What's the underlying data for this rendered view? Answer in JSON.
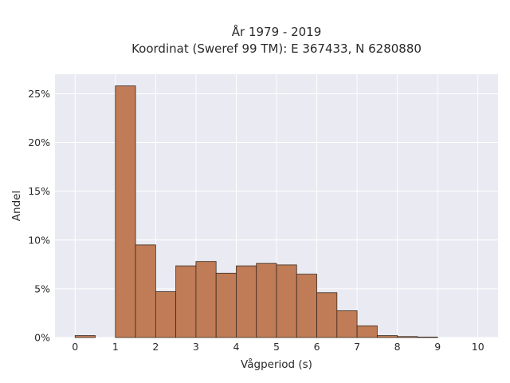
{
  "chart_data": {
    "type": "bar",
    "title_lines": [
      "År 1979 - 2019",
      "Koordinat (Sweref 99 TM): E 367433, N 6280880"
    ],
    "xlabel": "Vågperiod (s)",
    "ylabel": "Andel",
    "xlim": [
      -0.5,
      10.5
    ],
    "ylim": [
      0,
      27
    ],
    "x_ticks": [
      0,
      1,
      2,
      3,
      4,
      5,
      6,
      7,
      8,
      9,
      10
    ],
    "x_tick_labels": [
      "0",
      "1",
      "2",
      "3",
      "4",
      "5",
      "6",
      "7",
      "8",
      "9",
      "10"
    ],
    "y_ticks": [
      0,
      5,
      10,
      15,
      20,
      25
    ],
    "y_tick_labels": [
      "0%",
      "5%",
      "10%",
      "15%",
      "20%",
      "25%"
    ],
    "bin_width": 0.5,
    "bin_starts": [
      0,
      1,
      1.5,
      2,
      2.5,
      3,
      3.5,
      4,
      4.5,
      5,
      5.5,
      6,
      6.5,
      7,
      7.5,
      8,
      8.5
    ],
    "values": [
      0.2,
      25.8,
      9.5,
      4.7,
      7.35,
      7.8,
      6.6,
      7.35,
      7.6,
      7.45,
      6.5,
      4.6,
      2.75,
      1.2,
      0.2,
      0.1,
      0.05
    ],
    "bar_color": "#bf7c56",
    "bar_edge_color": "#3a2a20",
    "plot_background": "#eaeaf2",
    "grid": true,
    "grid_color": "#ffffff"
  }
}
